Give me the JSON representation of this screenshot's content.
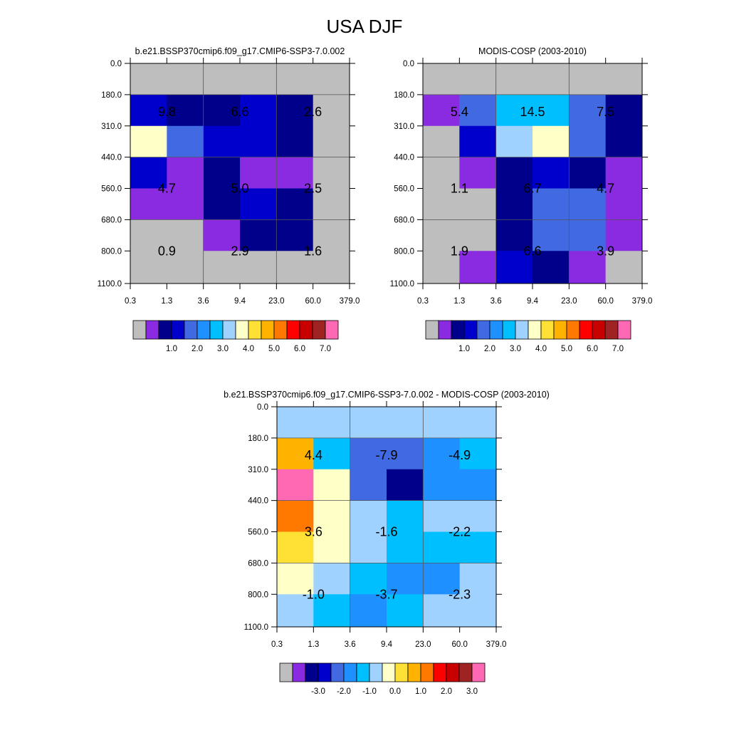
{
  "page": {
    "title": "USA DJF"
  },
  "palette": {
    "model_obs": [
      "#bebebe",
      "#8a2be2",
      "#00008b",
      "#0000cd",
      "#4169e1",
      "#1e90ff",
      "#00bfff",
      "#a0d2ff",
      "#ffffc8",
      "#ffe135",
      "#ffb300",
      "#ff7800",
      "#ff0000",
      "#c80000",
      "#a02323",
      "#ff69b4"
    ],
    "diff": [
      "#bebebe",
      "#8a2be2",
      "#00008b",
      "#0000cd",
      "#4169e1",
      "#1e90ff",
      "#00bfff",
      "#a0d2ff",
      "#ffffc8",
      "#ffe135",
      "#ffb300",
      "#ff7800",
      "#ff0000",
      "#c80000",
      "#a02323",
      "#ff69b4"
    ]
  },
  "chart_data": [
    {
      "type": "heatmap",
      "title": "b.e21.BSSP370cmip6.f09_g17.CMIP6-SSP3-7.0.002",
      "x_tick_labels": [
        "0.3",
        "1.3",
        "3.6",
        "9.4",
        "23.0",
        "60.0",
        "379.0"
      ],
      "y_tick_labels": [
        "0.0",
        "180.0",
        "310.0",
        "440.0",
        "560.0",
        "680.0",
        "800.0",
        "1100.0"
      ],
      "cell_color_index": [
        [
          0,
          0,
          0,
          0,
          0,
          0
        ],
        [
          3,
          2,
          2,
          3,
          2,
          0
        ],
        [
          8,
          4,
          3,
          3,
          2,
          0
        ],
        [
          3,
          1,
          2,
          1,
          1,
          0
        ],
        [
          1,
          1,
          2,
          3,
          2,
          0
        ],
        [
          0,
          0,
          1,
          2,
          2,
          0
        ],
        [
          0,
          0,
          0,
          0,
          0,
          0
        ]
      ],
      "block_values": [
        [
          "9.8",
          "6.6",
          "2.6"
        ],
        [
          "4.7",
          "5.0",
          "2.5"
        ],
        [
          "0.9",
          "2.9",
          "1.6"
        ]
      ],
      "colorbar_labels": [
        "1.0",
        "2.0",
        "3.0",
        "4.0",
        "5.0",
        "6.0",
        "7.0"
      ]
    },
    {
      "type": "heatmap",
      "title": "MODIS-COSP (2003-2010)",
      "x_tick_labels": [
        "0.3",
        "1.3",
        "3.6",
        "9.4",
        "23.0",
        "60.0",
        "379.0"
      ],
      "y_tick_labels": [
        "0.0",
        "180.0",
        "310.0",
        "440.0",
        "560.0",
        "680.0",
        "800.0",
        "1100.0"
      ],
      "cell_color_index": [
        [
          0,
          0,
          0,
          0,
          0,
          0
        ],
        [
          1,
          4,
          6,
          6,
          4,
          2
        ],
        [
          0,
          3,
          7,
          8,
          4,
          2
        ],
        [
          0,
          1,
          2,
          3,
          2,
          1
        ],
        [
          0,
          0,
          2,
          4,
          4,
          1
        ],
        [
          0,
          0,
          2,
          4,
          4,
          1
        ],
        [
          0,
          1,
          3,
          2,
          1,
          0
        ]
      ],
      "block_values": [
        [
          "5.4",
          "14.5",
          "7.5"
        ],
        [
          "1.1",
          "6.7",
          "4.7"
        ],
        [
          "1.9",
          "6.6",
          "3.9"
        ]
      ],
      "colorbar_labels": [
        "1.0",
        "2.0",
        "3.0",
        "4.0",
        "5.0",
        "6.0",
        "7.0"
      ]
    },
    {
      "type": "heatmap",
      "title": "b.e21.BSSP370cmip6.f09_g17.CMIP6-SSP3-7.0.002 - MODIS-COSP (2003-2010)",
      "x_tick_labels": [
        "0.3",
        "1.3",
        "3.6",
        "9.4",
        "23.0",
        "60.0",
        "379.0"
      ],
      "y_tick_labels": [
        "0.0",
        "180.0",
        "310.0",
        "440.0",
        "560.0",
        "680.0",
        "800.0",
        "1100.0"
      ],
      "cell_color_index": [
        [
          7,
          7,
          7,
          7,
          7,
          7
        ],
        [
          10,
          6,
          4,
          4,
          5,
          6
        ],
        [
          15,
          8,
          4,
          2,
          5,
          5
        ],
        [
          11,
          8,
          7,
          6,
          7,
          7
        ],
        [
          9,
          8,
          7,
          6,
          6,
          6
        ],
        [
          8,
          7,
          6,
          5,
          5,
          7
        ],
        [
          7,
          6,
          5,
          6,
          7,
          7
        ]
      ],
      "block_values": [
        [
          "4.4",
          "-7.9",
          "-4.9"
        ],
        [
          "3.6",
          "-1.6",
          "-2.2"
        ],
        [
          "-1.0",
          "-3.7",
          "-2.3"
        ]
      ],
      "colorbar_labels": [
        "-3.0",
        "-2.0",
        "-1.0",
        "0.0",
        "1.0",
        "2.0",
        "3.0"
      ]
    }
  ]
}
